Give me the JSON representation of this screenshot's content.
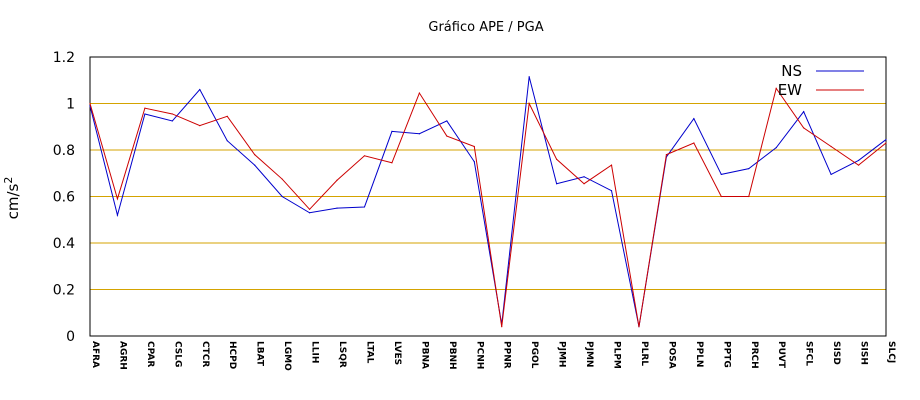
{
  "chart_data": {
    "type": "line",
    "title": "Gráfico  APE / PGA",
    "xlabel": "",
    "ylabel": "cm/s",
    "ylabel_sup": "2",
    "ylim": [
      0,
      1.2
    ],
    "yticks": [
      0,
      0.2,
      0.4,
      0.6,
      0.8,
      1,
      1.2
    ],
    "ytick_labels": [
      "0",
      "0.2",
      "0.4",
      "0.6",
      "0.8",
      "1",
      "1.2"
    ],
    "grid": "horizontal",
    "legend_position": "top-right",
    "categories": [
      "AFRA",
      "AGRH",
      "CPAR",
      "CSLG",
      "CTCR",
      "HCPD",
      "LBAT",
      "LGMO",
      "LLIH",
      "LSQR",
      "LTAL",
      "LVES",
      "PBNA",
      "PBNH",
      "PCNH",
      "PPNR",
      "PGOL",
      "PJMH",
      "PJMN",
      "PLPM",
      "PLRL",
      "POSA",
      "PPLN",
      "PPTG",
      "PRCH",
      "PUVT",
      "SFCL",
      "SISD",
      "SISH",
      "SLCJ"
    ],
    "series": [
      {
        "name": "NS",
        "color": "#0000cc",
        "values": [
          0.99,
          0.52,
          0.955,
          0.925,
          1.06,
          0.84,
          0.735,
          0.6,
          0.53,
          0.55,
          0.555,
          0.88,
          0.87,
          0.925,
          0.75,
          0.05,
          1.115,
          0.655,
          0.685,
          0.625,
          0.04,
          0.77,
          0.935,
          0.695,
          0.72,
          0.81,
          0.965,
          0.695,
          0.755,
          0.845
        ]
      },
      {
        "name": "EW",
        "color": "#cc0000",
        "values": [
          1.0,
          0.59,
          0.98,
          0.955,
          0.905,
          0.945,
          0.78,
          0.675,
          0.545,
          0.67,
          0.775,
          0.745,
          1.045,
          0.86,
          0.815,
          0.04,
          1.0,
          0.76,
          0.655,
          0.735,
          0.04,
          0.78,
          0.83,
          0.6,
          0.6,
          1.065,
          0.895,
          0.815,
          0.735,
          0.83
        ]
      }
    ],
    "colors": {
      "grid": "#d4a300",
      "axis": "#000000"
    }
  }
}
